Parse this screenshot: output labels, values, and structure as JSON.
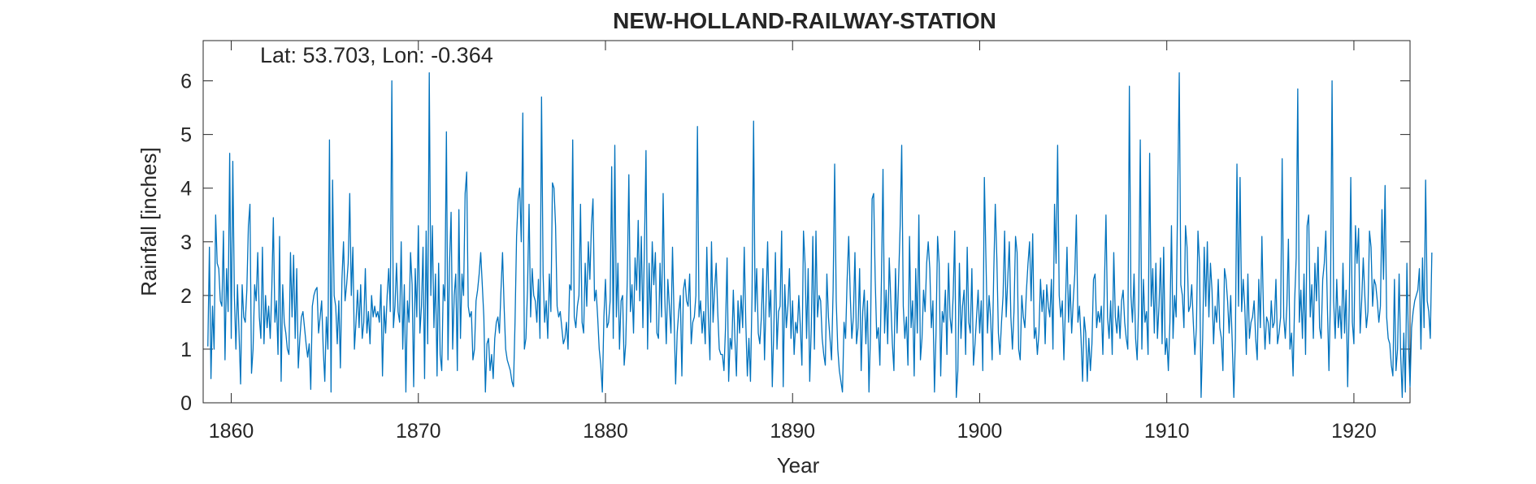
{
  "chart_data": {
    "type": "line",
    "title": "NEW-HOLLAND-RAILWAY-STATION",
    "annotation": "Lat: 53.703, Lon: -0.364",
    "xlabel": "Year",
    "ylabel": "Rainfall [inches]",
    "xlim": [
      1858.5,
      1923.0
    ],
    "ylim": [
      0,
      6.75
    ],
    "xticks": [
      1860,
      1870,
      1880,
      1890,
      1900,
      1910,
      1920
    ],
    "xtick_labels": [
      "1860",
      "1870",
      "1880",
      "1890",
      "1900",
      "1910",
      "1920"
    ],
    "yticks": [
      0,
      1,
      2,
      3,
      4,
      5,
      6
    ],
    "ytick_labels": [
      "0",
      "1",
      "2",
      "3",
      "4",
      "5",
      "6"
    ],
    "grid": false,
    "line_color": "#0072BD",
    "series": [
      {
        "x_start": 1858.75,
        "x_step": 0.0833333,
        "values": [
          1.05,
          2.9,
          0.45,
          1.8,
          1.0,
          3.5,
          2.6,
          2.5,
          1.9,
          1.8,
          3.2,
          0.8,
          2.5,
          1.7,
          4.65,
          1.2,
          4.5,
          2.0,
          1.0,
          2.2,
          1.3,
          0.35,
          2.2,
          1.6,
          1.5,
          2.1,
          3.3,
          3.7,
          0.55,
          1.0,
          2.2,
          1.9,
          2.8,
          1.6,
          1.2,
          2.9,
          1.1,
          2.0,
          1.4,
          1.8,
          1.2,
          2.1,
          3.45,
          1.5,
          1.9,
          0.9,
          3.1,
          0.4,
          2.2,
          1.5,
          1.3,
          1.0,
          0.9,
          2.8,
          1.6,
          2.75,
          1.2,
          2.5,
          0.65,
          1.2,
          1.6,
          1.7,
          1.4,
          1.1,
          0.85,
          1.1,
          0.25,
          1.8,
          2.0,
          2.1,
          2.15,
          1.3,
          1.6,
          1.9,
          1.0,
          0.4,
          1.6,
          1.0,
          4.9,
          0.2,
          4.15,
          2.0,
          1.8,
          1.1,
          1.9,
          0.65,
          2.3,
          3.0,
          1.9,
          2.2,
          2.6,
          3.9,
          2.0,
          2.9,
          1.0,
          1.5,
          2.1,
          1.4,
          2.2,
          1.2,
          1.5,
          2.5,
          1.3,
          1.7,
          1.1,
          2.0,
          1.6,
          1.8,
          1.6,
          1.7,
          1.5,
          2.2,
          0.5,
          1.8,
          1.3,
          2.0,
          2.5,
          1.7,
          6.0,
          1.4,
          1.8,
          2.6,
          1.7,
          1.5,
          3.0,
          1.0,
          2.2,
          0.2,
          1.9,
          1.5,
          2.8,
          2.2,
          0.3,
          2.5,
          1.6,
          3.3,
          1.3,
          1.8,
          2.9,
          0.45,
          3.2,
          1.1,
          6.15,
          2.0,
          3.3,
          1.4,
          2.4,
          0.5,
          2.6,
          0.9,
          0.6,
          2.2,
          1.9,
          5.05,
          0.8,
          2.6,
          3.55,
          1.0,
          2.0,
          2.4,
          0.6,
          3.6,
          1.2,
          2.4,
          2.0,
          3.9,
          4.3,
          1.8,
          1.6,
          1.7,
          0.8,
          1.0,
          1.9,
          2.1,
          2.4,
          2.8,
          2.2,
          1.6,
          0.2,
          1.1,
          1.2,
          0.6,
          0.9,
          0.45,
          1.2,
          1.5,
          1.6,
          1.3,
          2.1,
          2.8,
          1.8,
          1.0,
          0.8,
          0.7,
          0.6,
          0.4,
          0.3,
          1.5,
          3.1,
          3.8,
          4.0,
          3.0,
          5.4,
          1.0,
          1.2,
          2.1,
          3.7,
          1.6,
          2.5,
          2.0,
          1.9,
          1.5,
          2.3,
          1.2,
          5.7,
          2.4,
          1.5,
          1.9,
          1.2,
          2.4,
          1.7,
          4.1,
          4.0,
          3.3,
          1.8,
          1.6,
          1.7,
          1.4,
          1.1,
          1.2,
          1.5,
          1.0,
          2.2,
          2.1,
          4.9,
          1.6,
          1.4,
          1.8,
          2.0,
          3.7,
          1.5,
          1.3,
          2.6,
          1.8,
          3.0,
          2.3,
          3.3,
          3.8,
          1.9,
          2.1,
          1.6,
          1.0,
          0.7,
          0.2,
          1.6,
          2.3,
          1.4,
          1.5,
          1.9,
          4.4,
          1.2,
          4.8,
          1.6,
          2.6,
          1.0,
          1.9,
          2.0,
          0.7,
          1.1,
          2.3,
          4.25,
          1.7,
          2.2,
          1.3,
          2.7,
          2.1,
          3.4,
          1.9,
          3.1,
          1.4,
          2.9,
          4.7,
          1.0,
          2.6,
          1.5,
          3.0,
          2.2,
          2.8,
          1.3,
          1.2,
          2.6,
          1.6,
          3.9,
          2.0,
          1.1,
          2.3,
          1.8,
          1.3,
          2.9,
          1.6,
          0.35,
          1.3,
          1.7,
          2.0,
          0.5,
          2.1,
          2.3,
          1.9,
          1.8,
          2.4,
          1.1,
          1.5,
          1.6,
          2.0,
          5.15,
          1.6,
          1.9,
          1.3,
          1.7,
          1.1,
          2.9,
          1.6,
          0.8,
          3.0,
          1.5,
          2.1,
          2.6,
          1.7,
          1.0,
          0.9,
          0.9,
          0.6,
          1.4,
          2.7,
          0.4,
          1.2,
          1.0,
          2.1,
          1.2,
          0.5,
          1.9,
          1.3,
          2.0,
          1.4,
          2.9,
          1.5,
          0.5,
          1.2,
          0.4,
          2.0,
          5.25,
          1.7,
          2.5,
          1.3,
          1.1,
          1.6,
          2.5,
          0.8,
          1.9,
          3.0,
          1.6,
          2.1,
          0.3,
          1.4,
          2.8,
          1.0,
          1.7,
          1.8,
          3.2,
          0.3,
          2.2,
          1.4,
          1.8,
          2.5,
          1.2,
          1.9,
          0.9,
          1.5,
          1.3,
          2.0,
          1.4,
          0.7,
          3.2,
          2.6,
          1.2,
          2.5,
          0.4,
          1.4,
          3.1,
          1.0,
          3.2,
          1.6,
          2.0,
          1.9,
          1.2,
          0.9,
          0.7,
          2.4,
          1.6,
          1.2,
          0.8,
          2.1,
          4.45,
          1.9,
          1.0,
          0.6,
          0.4,
          0.2,
          1.5,
          1.2,
          2.3,
          3.1,
          2.0,
          1.2,
          1.6,
          2.8,
          1.1,
          1.4,
          2.5,
          0.6,
          1.7,
          2.1,
          1.1,
          1.9,
          0.2,
          1.3,
          3.8,
          3.9,
          2.3,
          1.2,
          1.4,
          0.7,
          2.3,
          4.35,
          1.3,
          2.1,
          1.1,
          2.7,
          1.9,
          1.1,
          0.6,
          2.5,
          1.3,
          2.3,
          3.3,
          4.8,
          1.8,
          1.2,
          1.6,
          0.7,
          3.1,
          1.4,
          1.9,
          0.5,
          2.5,
          1.3,
          3.5,
          0.8,
          1.2,
          2.1,
          1.7,
          2.6,
          3.0,
          2.5,
          1.4,
          1.9,
          0.2,
          1.3,
          3.1,
          2.6,
          0.5,
          1.7,
          1.5,
          2.1,
          0.9,
          2.6,
          1.6,
          1.3,
          2.0,
          3.2,
          0.1,
          0.6,
          2.6,
          1.2,
          1.8,
          2.1,
          0.9,
          2.9,
          1.5,
          1.3,
          2.5,
          0.7,
          1.1,
          1.6,
          2.1,
          1.3,
          1.9,
          0.6,
          4.2,
          2.7,
          1.3,
          2.0,
          1.6,
          0.8,
          2.4,
          3.7,
          2.7,
          1.3,
          0.9,
          1.5,
          2.0,
          3.2,
          1.6,
          2.3,
          3.0,
          1.6,
          1.0,
          1.7,
          3.1,
          2.8,
          1.0,
          0.8,
          2.0,
          1.6,
          1.4,
          2.1,
          2.6,
          3.0,
          1.9,
          3.15,
          1.2,
          1.4,
          0.9,
          1.3,
          2.3,
          1.7,
          2.1,
          1.1,
          2.2,
          1.8,
          1.6,
          2.3,
          1.0,
          3.7,
          2.6,
          4.8,
          2.0,
          1.6,
          1.9,
          0.8,
          1.8,
          2.9,
          1.5,
          2.2,
          1.3,
          1.9,
          2.4,
          3.5,
          1.5,
          1.8,
          1.2,
          0.4,
          1.6,
          1.3,
          0.4,
          1.2,
          0.6,
          1.1,
          2.3,
          2.4,
          1.4,
          1.7,
          1.5,
          1.8,
          0.9,
          2.2,
          3.5,
          1.6,
          1.2,
          1.9,
          0.9,
          2.8,
          1.6,
          1.3,
          1.8,
          1.2,
          1.9,
          2.1,
          1.5,
          1.2,
          1.0,
          5.9,
          2.0,
          1.5,
          2.4,
          1.2,
          0.8,
          1.9,
          4.9,
          1.0,
          2.3,
          1.5,
          1.7,
          0.9,
          4.65,
          1.8,
          2.5,
          1.3,
          2.6,
          1.2,
          1.8,
          2.7,
          1.1,
          2.9,
          0.9,
          1.2,
          0.6,
          1.5,
          3.3,
          1.2,
          2.0,
          1.6,
          3.9,
          6.15,
          2.2,
          2.0,
          1.4,
          3.3,
          2.9,
          1.7,
          1.8,
          2.2,
          1.5,
          0.9,
          1.4,
          3.2,
          2.6,
          0.1,
          1.2,
          2.9,
          1.8,
          3.0,
          1.6,
          2.6,
          2.1,
          1.1,
          1.8,
          1.5,
          2.3,
          1.4,
          1.2,
          0.6,
          2.5,
          2.3,
          1.9,
          1.3,
          2.0,
          1.1,
          0.1,
          1.2,
          4.45,
          1.8,
          4.2,
          1.7,
          2.3,
          1.8,
          0.9,
          2.4,
          1.2,
          1.5,
          1.6,
          1.9,
          1.2,
          0.8,
          2.3,
          1.4,
          3.1,
          1.7,
          1.0,
          1.6,
          1.5,
          1.1,
          1.9,
          1.4,
          1.5,
          2.3,
          1.1,
          1.3,
          1.6,
          4.55,
          1.6,
          1.2,
          1.8,
          3.05,
          1.0,
          1.3,
          0.5,
          1.9,
          2.7,
          5.85,
          1.5,
          2.1,
          1.2,
          2.4,
          0.9,
          3.3,
          3.5,
          1.6,
          2.2,
          1.2,
          2.6,
          1.9,
          2.9,
          1.4,
          1.2,
          2.3,
          2.6,
          3.2,
          1.8,
          0.6,
          2.0,
          6.0,
          1.9,
          1.2,
          2.3,
          1.4,
          1.8,
          1.2,
          2.6,
          1.3,
          2.1,
          0.3,
          1.8,
          4.2,
          1.5,
          1.1,
          3.3,
          2.6,
          3.25,
          1.3,
          1.9,
          2.7,
          2.0,
          1.4,
          1.7,
          3.2,
          2.9,
          1.8,
          2.3,
          2.2,
          1.9,
          1.5,
          1.8,
          3.6,
          2.3,
          4.05,
          1.6,
          1.2,
          1.1,
          0.7,
          0.5,
          2.3,
          0.6,
          1.0,
          2.4,
          0.9,
          0.1,
          1.3,
          0.2,
          2.6,
          1.1,
          0.3,
          1.4,
          1.7,
          1.9,
          2.0,
          2.1,
          2.5,
          1.0,
          2.7,
          1.4,
          4.15,
          1.9,
          1.7,
          1.2,
          2.8
        ]
      }
    ]
  }
}
